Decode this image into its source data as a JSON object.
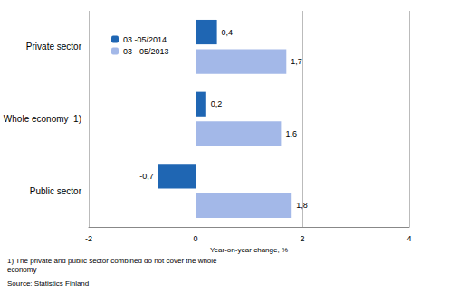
{
  "chart_data": {
    "type": "bar",
    "orientation": "horizontal",
    "categories": [
      "Private sector",
      "Whole economy  1)",
      "Public sector"
    ],
    "series": [
      {
        "name": "03 -05/2014",
        "color": "#1f66b3",
        "values": [
          0.4,
          0.2,
          -0.7
        ],
        "value_labels": [
          "0,4",
          "0,2",
          "-0,7"
        ]
      },
      {
        "name": "03 - 05/2013",
        "color": "#a3b8e8",
        "values": [
          1.7,
          1.6,
          1.8
        ],
        "value_labels": [
          "1,7",
          "1,6",
          "1,8"
        ]
      }
    ],
    "xlabel": "Year-on-year change, %",
    "xlim": [
      -2,
      4
    ],
    "xticks": [
      -2,
      0,
      2,
      4
    ],
    "grid": true,
    "legend": "upper left",
    "data_labels": true,
    "annotations": [
      "1) The private and public sector combined do not cover the whole economy",
      "Source: Statistics Finland"
    ]
  }
}
